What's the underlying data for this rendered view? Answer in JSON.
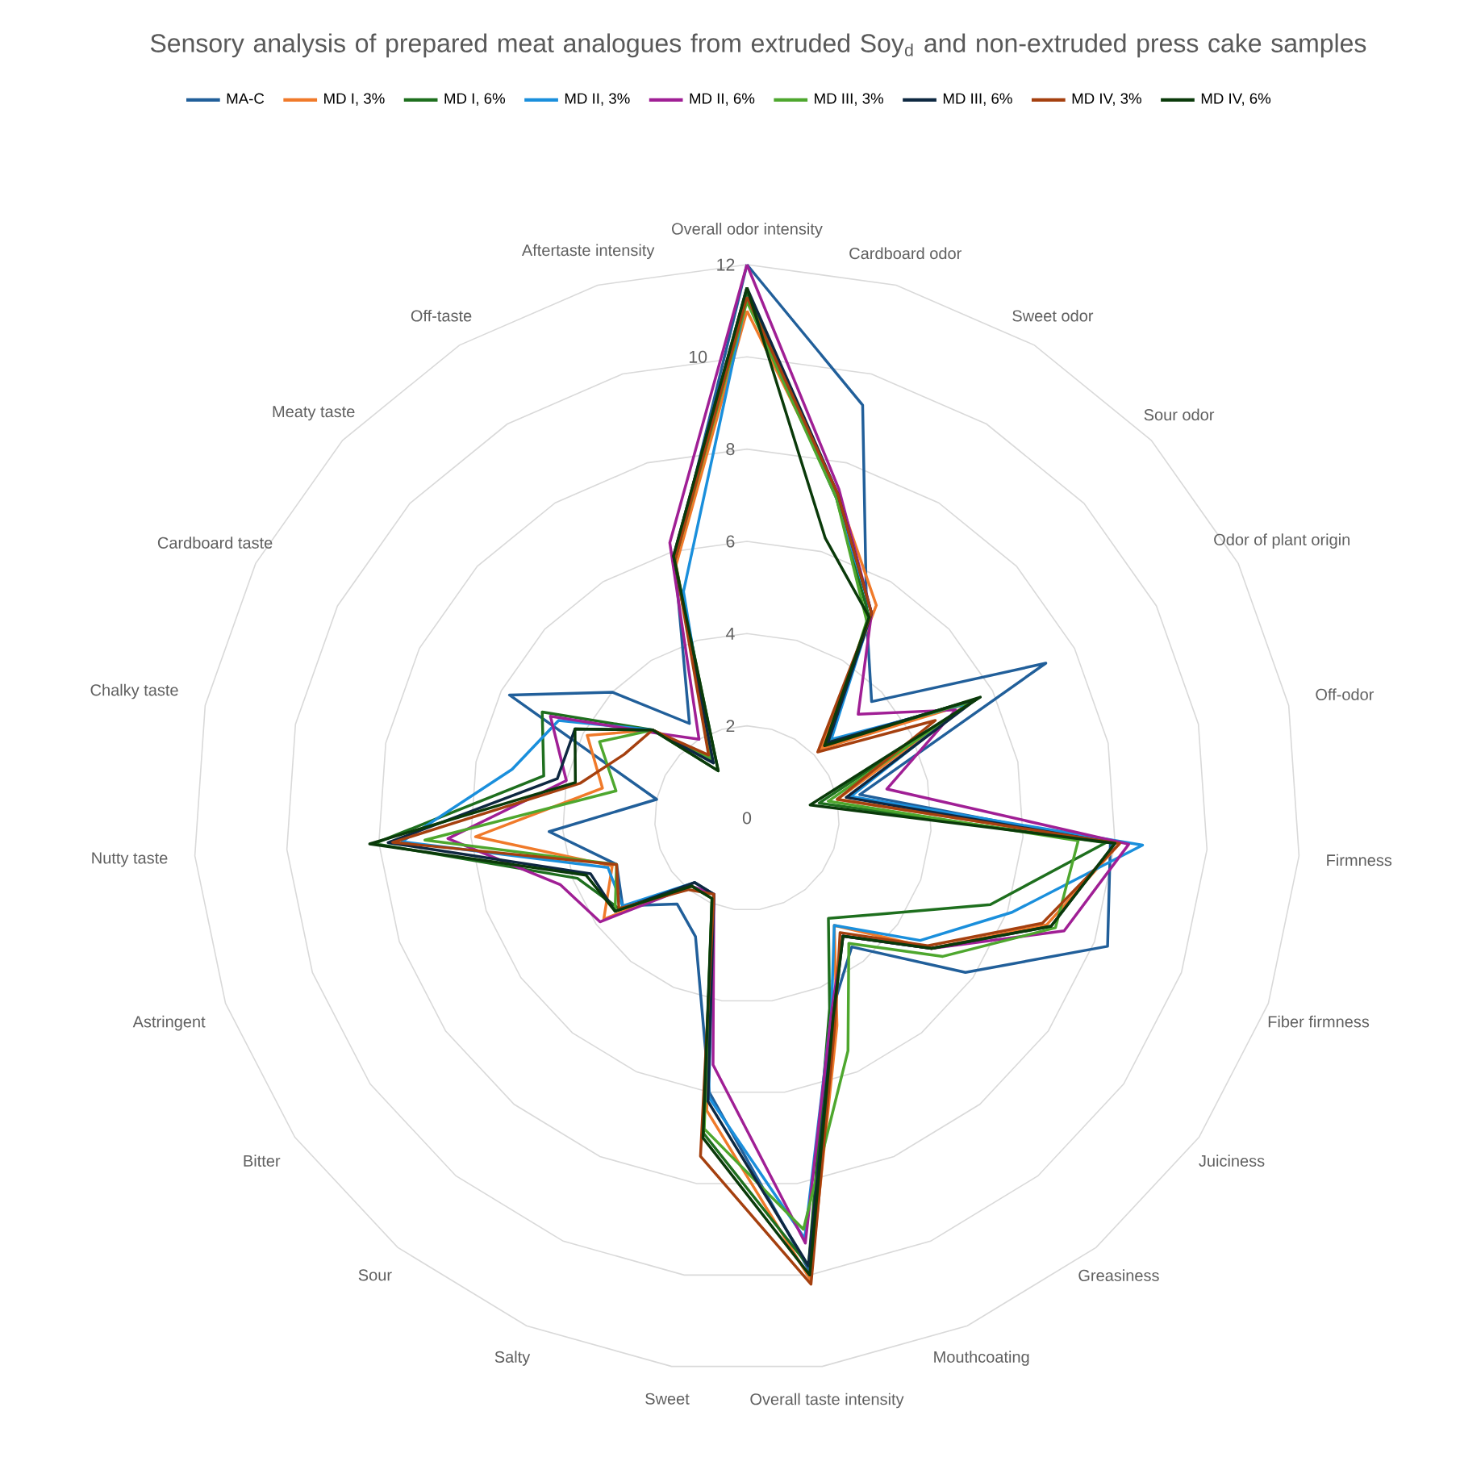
{
  "chart_data": {
    "type": "radar",
    "title": "Sensory analysis of prepared meat analogues from extruded Soy$_{d}$ and non-extruded press cake samples",
    "categories": [
      "Overall odor intensity",
      "Cardboard odor",
      "Sweet odor",
      "Sour odor",
      "Odor of plant origin",
      "Off-odor",
      "Firmness",
      "Fiber firmness",
      "Juiciness",
      "Greasiness",
      "Mouthcoating",
      "Overall taste intensity",
      "Sweet",
      "Salty",
      "Sour",
      "Bitter",
      "Astringent",
      "Nutty taste",
      "Chalky taste",
      "Cardboard taste",
      "Meaty taste",
      "Off-taste",
      "Aftertaste intensity"
    ],
    "series": [
      {
        "name": "MA-C",
        "color": "#215f9a",
        "values": [
          12,
          9.3,
          5.0,
          3.7,
          7.3,
          2.5,
          7.9,
          8.3,
          5.8,
          3.6,
          4.6,
          9.9,
          6.0,
          2.8,
          2.4,
          3.3,
          3.0,
          4.3,
          2.0,
          5.8,
          4.0,
          2.4,
          5.8
        ]
      },
      {
        "name": "MD I, 3%",
        "color": "#f07a2a",
        "values": [
          11.0,
          7.3,
          5.4,
          2.2,
          5.4,
          2.0,
          8.1,
          6.9,
          4.9,
          3.0,
          4.9,
          10.1,
          6.4,
          1.8,
          1.8,
          3.8,
          3.1,
          5.9,
          3.2,
          3.9,
          2.8,
          1.5,
          5.7
        ]
      },
      {
        "name": "MD I, 6%",
        "color": "#1e6f1e",
        "values": [
          11.4,
          7.2,
          5.1,
          2.4,
          5.6,
          1.6,
          7.8,
          5.6,
          3.6,
          2.8,
          4.5,
          9.8,
          6.9,
          1.9,
          1.9,
          3.4,
          3.9,
          8.1,
          4.5,
          5.0,
          2.8,
          1.2,
          5.8
        ]
      },
      {
        "name": "MD II, 3%",
        "color": "#1a8fdc",
        "values": [
          11.3,
          7.2,
          5.2,
          2.5,
          5.4,
          2.3,
          8.6,
          6.1,
          4.6,
          3.0,
          4.6,
          9.2,
          6.1,
          1.8,
          1.8,
          3.3,
          3.2,
          7.5,
          5.2,
          4.6,
          2.8,
          1.5,
          5.1
        ]
      },
      {
        "name": "MD II, 6%",
        "color": "#a01f95",
        "values": [
          12.0,
          7.4,
          5.2,
          3.3,
          5.1,
          3.1,
          8.3,
          7.3,
          4.9,
          3.3,
          4.6,
          9.3,
          5.4,
          1.8,
          1.9,
          3.9,
          4.3,
          6.5,
          4.0,
          4.8,
          2.7,
          2.0,
          6.2
        ]
      },
      {
        "name": "MD III, 3%",
        "color": "#4ea72e",
        "values": [
          11.2,
          7.2,
          5.0,
          2.4,
          5.5,
          1.8,
          7.2,
          7.1,
          5.2,
          3.5,
          5.5,
          9.0,
          6.8,
          1.9,
          1.9,
          3.5,
          3.0,
          7.0,
          2.9,
          3.6,
          2.8,
          1.5,
          5.8
        ]
      },
      {
        "name": "MD III, 6%",
        "color": "#0e2841",
        "values": [
          11.5,
          7.3,
          5.2,
          2.4,
          5.6,
          2.2,
          8.0,
          7.0,
          4.9,
          3.3,
          4.7,
          9.8,
          6.2,
          1.8,
          1.8,
          3.5,
          3.6,
          7.8,
          4.2,
          4.2,
          2.8,
          1.4,
          5.9
        ]
      },
      {
        "name": "MD IV, 3%",
        "color": "#a5400f",
        "values": [
          11.3,
          7.3,
          5.2,
          2.1,
          4.6,
          2.0,
          8.1,
          6.8,
          4.8,
          3.2,
          4.8,
          10.2,
          7.4,
          1.8,
          2.0,
          3.4,
          3.0,
          7.7,
          3.7,
          3.0,
          2.8,
          1.6,
          5.8
        ]
      },
      {
        "name": "MD IV, 6%",
        "color": "#0a3a0a",
        "values": [
          11.5,
          6.3,
          5.1,
          2.3,
          5.7,
          1.4,
          8.0,
          7.0,
          4.9,
          3.3,
          4.7,
          10.0,
          7.0,
          1.9,
          1.9,
          3.5,
          3.7,
          8.2,
          3.8,
          4.2,
          2.8,
          1.2,
          5.9
        ]
      }
    ],
    "ylim": [
      0,
      12
    ],
    "yticks": [
      0,
      2,
      4,
      6,
      8,
      10,
      12
    ],
    "grid": true,
    "legend": "top"
  }
}
